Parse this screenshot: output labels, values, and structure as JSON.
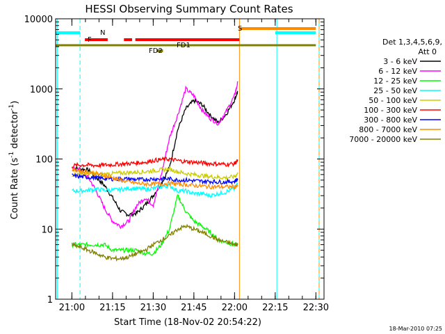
{
  "chart_data": {
    "type": "line",
    "title": "HESSI Observing Summary Count Rates",
    "xlabel": "Start Time (18-Nov-02 20:54:22)",
    "ylabel_prefix": "Count Rate (s",
    "ylabel_sup1": "-1",
    "ylabel_mid": " detector",
    "ylabel_sup2": "-1",
    "ylabel_suffix": ")",
    "y_scale": "log",
    "ylim": [
      1,
      10000
    ],
    "xlim_minutes": [
      20.9,
      22.55
    ],
    "x_unit": "hours (UT)",
    "x_ticks": [
      {
        "label": "21:00",
        "value": 21.0
      },
      {
        "label": "21:15",
        "value": 21.25
      },
      {
        "label": "21:30",
        "value": 21.5
      },
      {
        "label": "21:45",
        "value": 21.75
      },
      {
        "label": "22:00",
        "value": 22.0
      },
      {
        "label": "22:15",
        "value": 22.25
      },
      {
        "label": "22:30",
        "value": 22.5
      }
    ],
    "y_ticks": [
      {
        "label": "1",
        "value": 1
      },
      {
        "label": "10",
        "value": 10
      },
      {
        "label": "100",
        "value": 100
      },
      {
        "label": "1000",
        "value": 1000
      },
      {
        "label": "10000",
        "value": 10000
      }
    ],
    "legend": {
      "placement": "right",
      "header1": "Det 1,3,4,5,6,9,",
      "header2": "Att 0",
      "entries": [
        {
          "label": "3 - 6 keV",
          "color": "#000000"
        },
        {
          "label": "6 - 12 keV",
          "color": "#ff00ff"
        },
        {
          "label": "12 - 25 keV",
          "color": "#00ff00"
        },
        {
          "label": "25 - 50 keV",
          "color": "#00ffff"
        },
        {
          "label": "50 - 100 keV",
          "color": "#cccc00"
        },
        {
          "label": "100 - 300 keV",
          "color": "#ff0000"
        },
        {
          "label": "300 - 800 keV",
          "color": "#0000ff"
        },
        {
          "label": "800 - 7000 keV",
          "color": "#ff8c00"
        },
        {
          "label": "7000 - 20000 keV",
          "color": "#808000"
        }
      ]
    },
    "series": [
      {
        "name": "3 - 6 keV",
        "color": "#000000",
        "x": [
          21.0,
          21.05,
          21.1,
          21.15,
          21.2,
          21.25,
          21.3,
          21.35,
          21.4,
          21.45,
          21.5,
          21.55,
          21.6,
          21.65,
          21.7,
          21.75,
          21.8,
          21.85,
          21.9,
          21.95,
          22.0,
          22.02
        ],
        "y": [
          75,
          72,
          70,
          55,
          42,
          28,
          18,
          16,
          17,
          22,
          30,
          45,
          75,
          260,
          520,
          680,
          600,
          420,
          330,
          440,
          700,
          930
        ]
      },
      {
        "name": "6 - 12 keV",
        "color": "#ff00ff",
        "x": [
          21.0,
          21.05,
          21.1,
          21.15,
          21.2,
          21.25,
          21.3,
          21.35,
          21.4,
          21.45,
          21.5,
          21.55,
          21.6,
          21.65,
          21.7,
          21.75,
          21.8,
          21.85,
          21.9,
          21.95,
          22.0,
          22.02
        ],
        "y": [
          72,
          70,
          55,
          35,
          20,
          13,
          11,
          13,
          22,
          28,
          22,
          60,
          200,
          420,
          1000,
          800,
          500,
          380,
          320,
          480,
          800,
          1250
        ]
      },
      {
        "name": "12 - 25 keV",
        "color": "#00ff00",
        "x": [
          21.0,
          21.05,
          21.1,
          21.15,
          21.2,
          21.25,
          21.3,
          21.35,
          21.4,
          21.45,
          21.5,
          21.55,
          21.6,
          21.65,
          21.7,
          21.75,
          21.8,
          21.85,
          21.9,
          21.95,
          22.0,
          22.02
        ],
        "y": [
          6,
          6,
          6,
          6,
          6,
          5,
          5,
          5,
          5,
          4.5,
          4.5,
          6,
          10,
          30,
          18,
          13,
          11,
          9,
          7,
          6.5,
          6,
          6
        ]
      },
      {
        "name": "25 - 50 keV",
        "color": "#00ffff",
        "x": [
          21.0,
          21.05,
          21.1,
          21.15,
          21.2,
          21.25,
          21.3,
          21.35,
          21.4,
          21.45,
          21.5,
          21.55,
          21.6,
          21.65,
          21.7,
          21.75,
          21.8,
          21.85,
          21.9,
          21.95,
          22.0,
          22.02
        ],
        "y": [
          35,
          35,
          36,
          37,
          36,
          36,
          37,
          38,
          38,
          37,
          38,
          40,
          42,
          35,
          35,
          32,
          32,
          30,
          32,
          34,
          38,
          45
        ]
      },
      {
        "name": "50 - 100 keV",
        "color": "#cccc00",
        "x": [
          21.0,
          21.05,
          21.1,
          21.15,
          21.2,
          21.25,
          21.3,
          21.35,
          21.4,
          21.45,
          21.5,
          21.55,
          21.6,
          21.65,
          21.7,
          21.75,
          21.8,
          21.85,
          21.9,
          21.95,
          22.0,
          22.02
        ],
        "y": [
          60,
          61,
          62,
          60,
          61,
          62,
          63,
          64,
          65,
          66,
          68,
          70,
          72,
          66,
          62,
          60,
          58,
          56,
          55,
          54,
          56,
          62
        ]
      },
      {
        "name": "100 - 300 keV",
        "color": "#ff0000",
        "x": [
          21.0,
          21.05,
          21.1,
          21.15,
          21.2,
          21.25,
          21.3,
          21.35,
          21.4,
          21.45,
          21.5,
          21.55,
          21.6,
          21.65,
          21.7,
          21.75,
          21.8,
          21.85,
          21.9,
          21.95,
          22.0,
          22.02
        ],
        "y": [
          80,
          82,
          82,
          81,
          82,
          83,
          85,
          86,
          88,
          90,
          95,
          98,
          100,
          95,
          92,
          90,
          88,
          86,
          85,
          84,
          86,
          95
        ]
      },
      {
        "name": "300 - 800 keV",
        "color": "#0000ff",
        "x": [
          21.0,
          21.05,
          21.1,
          21.15,
          21.2,
          21.25,
          21.3,
          21.35,
          21.4,
          21.45,
          21.5,
          21.55,
          21.6,
          21.65,
          21.7,
          21.75,
          21.8,
          21.85,
          21.9,
          21.95,
          22.0,
          22.02
        ],
        "y": [
          58,
          56,
          55,
          54,
          53,
          52,
          52,
          52,
          51,
          51,
          52,
          52,
          52,
          50,
          50,
          49,
          48,
          48,
          47,
          47,
          48,
          52
        ]
      },
      {
        "name": "800 - 7000 keV",
        "color": "#ff8c00",
        "x": [
          21.0,
          21.05,
          21.1,
          21.15,
          21.2,
          21.25,
          21.3,
          21.35,
          21.4,
          21.45,
          21.5,
          21.55,
          21.6,
          21.65,
          21.7,
          21.75,
          21.8,
          21.85,
          21.9,
          21.95,
          22.0,
          22.02
        ],
        "y": [
          70,
          68,
          65,
          62,
          58,
          54,
          50,
          47,
          45,
          44,
          44,
          44,
          45,
          44,
          43,
          42,
          41,
          40,
          40,
          40,
          40,
          41
        ]
      },
      {
        "name": "7000 - 20000 keV",
        "color": "#808000",
        "x": [
          21.0,
          21.05,
          21.1,
          21.15,
          21.2,
          21.25,
          21.3,
          21.35,
          21.4,
          21.45,
          21.5,
          21.55,
          21.6,
          21.65,
          21.7,
          21.75,
          21.8,
          21.85,
          21.9,
          21.95,
          22.0,
          22.02
        ],
        "y": [
          6,
          5.5,
          5,
          4.5,
          4,
          3.8,
          3.8,
          4,
          4.5,
          5,
          6,
          7,
          8,
          10,
          11,
          10,
          9,
          8,
          7,
          6.5,
          6,
          6
        ]
      }
    ],
    "flags": [
      {
        "label": "N",
        "color": "#00ffff",
        "segments": [
          [
            20.9,
            21.05
          ],
          [
            22.25,
            22.5
          ]
        ]
      },
      {
        "label": "S",
        "color": "#ff8c00",
        "segments": [
          [
            22.03,
            22.5
          ]
        ]
      },
      {
        "label": "F",
        "color": "#ff0000",
        "segments": [
          [
            21.08,
            21.22
          ],
          [
            21.32,
            21.37
          ],
          [
            21.39,
            22.03
          ]
        ]
      },
      {
        "label": "FD1",
        "color": "#808000",
        "segments": [
          [
            20.9,
            22.5
          ]
        ]
      },
      {
        "label": "FD2",
        "color": "#808000",
        "segments": [
          [
            21.52,
            21.56
          ]
        ]
      }
    ],
    "vertical_lines": [
      {
        "x": 20.91,
        "color": "#00ffff",
        "style": "solid"
      },
      {
        "x": 21.05,
        "color": "#00ffff",
        "style": "dashed"
      },
      {
        "x": 22.03,
        "color": "#ff8c00",
        "style": "solid"
      },
      {
        "x": 22.26,
        "color": "#00ffff",
        "style": "solid"
      },
      {
        "x": 22.52,
        "color": "#00ffff",
        "style": "solid"
      },
      {
        "x": 22.52,
        "color": "#ff8c00",
        "style": "dashed"
      }
    ]
  },
  "footer": {
    "timestamp": "18-Mar-2010 07:25"
  }
}
